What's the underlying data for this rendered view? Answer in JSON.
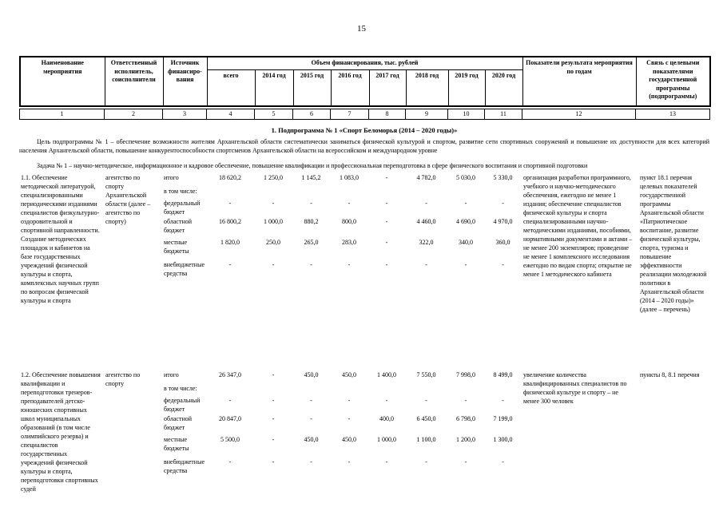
{
  "page": {
    "number": "15"
  },
  "table": {
    "headers": {
      "col1": "Наименование мероприятия",
      "col2": "Ответственный исполнитель, соисполнители",
      "col3": "Источник финансиро- вания",
      "funding_span": "Объем финансирования, тыс. рублей",
      "years": [
        "всего",
        "2014 год",
        "2015 год",
        "2016 год",
        "2017 год",
        "2018 год",
        "2019 год",
        "2020 год"
      ],
      "col12": "Показатели результата мероприятия по годам",
      "col13": "Связь с целевыми показателями государственной программы (подпрограммы)"
    },
    "column_numbers": [
      "1",
      "2",
      "3",
      "4",
      "5",
      "6",
      "7",
      "8",
      "9",
      "10",
      "11",
      "12",
      "13"
    ]
  },
  "subprogram": {
    "title": "1. Подпрограмма № 1 «Спорт Беломорья (2014 – 2020 годы)»",
    "goal": "Цель подпрограммы № 1 – обеспечение возможности жителям Архангельской области систематически заниматься физической культурой и спортом, развитие сети спортивных сооружений и повышение их доступности для всех категорий населения Архангельской области, повышение конкурентоспособности спортсменов Архангельской области на всероссийском и международном уровне",
    "task": "Задача № 1 – научно-методическое, информационное и кадровое обеспечение, повышение квалификации и профессиональная переподготовка в сфере физического воспитания и спортивной подготовки"
  },
  "rows": [
    {
      "measure": "1.1. Обеспечение методической литературой, специализированными периодическими изданиями специалистов физкультурно-оздоровительной и спортивной направленности. Создание методических площадок и кабинетов на базе государственных учреждений физической культуры и спорта, комплексных научных групп по вопросам физической культуры и спорта",
      "executor": "агентство по спорту Архангельской области (далее – агентство по спорту)",
      "financing": [
        {
          "source": "итого",
          "values": [
            "18 620,2",
            "1 250,0",
            "1 145,2",
            "1 083,0",
            "-",
            "4 782,0",
            "5 030,0",
            "5 330,0"
          ]
        },
        {
          "source": "в том числе:",
          "values": []
        },
        {
          "source": "федеральный бюджет",
          "values": [
            "-",
            "-",
            "-",
            "-",
            "-",
            "-",
            "-",
            "-"
          ]
        },
        {
          "source": "областной бюджет",
          "values": [
            "16 800,2",
            "1 000,0",
            "880,2",
            "800,0",
            "-",
            "4 460,0",
            "4 690,0",
            "4 970,0"
          ]
        },
        {
          "source": "местные бюджеты",
          "values": [
            "1 820,0",
            "250,0",
            "265,0",
            "283,0",
            "-",
            "322,0",
            "340,0",
            "360,0"
          ]
        },
        {
          "source": "внебюджетные средства",
          "values": [
            "-",
            "-",
            "-",
            "-",
            "-",
            "-",
            "-",
            "-"
          ]
        }
      ],
      "indicators": "организация разработки программного, учебного и научно-методического обеспечения, ежегодно не менее 1 издания; обеспечение специалистов физической культуры и спорта специализированными научно-методическими изданиями, пособиями, нормативными документами и актами – не менее 200 экземпляров; проведение не менее 1 комплексного исследования ежегодно по видам спорта; открытие не менее 1 методического кабинета",
      "link": "пункт 18.1 перечня целевых показателей государственной программы Архангельской области «Патриотическое воспитание, развитие физической культуры, спорта, туризма и повышение эффективности реализации молодежной политики в Архангельской области (2014 – 2020 годы)» (далее – перечень)"
    },
    {
      "measure": "1.2. Обеспечение повышения квалификации и переподготовки тренеров-преподавателей детско-юношеских спортивных школ муниципальных образований (в том числе олимпийского резерва) и специалистов государственных учреждений физической культуры и спорта, переподготовки спортивных судей",
      "executor": "агентство по спорту",
      "financing": [
        {
          "source": "итого",
          "values": [
            "26 347,0",
            "-",
            "450,0",
            "450,0",
            "1 400,0",
            "7 550,0",
            "7 998,0",
            "8 499,0"
          ]
        },
        {
          "source": "в том числе:",
          "values": []
        },
        {
          "source": "федеральный бюджет",
          "values": [
            "-",
            "-",
            "-",
            "-",
            "-",
            "-",
            "-",
            "-"
          ]
        },
        {
          "source": "областной бюджет",
          "values": [
            "20 847,0",
            "-",
            "-",
            "-",
            "400,0",
            "6 450,0",
            "6 798,0",
            "7 199,0"
          ]
        },
        {
          "source": "местные бюджеты",
          "values": [
            "5 500,0",
            "-",
            "450,0",
            "450,0",
            "1 000,0",
            "1 100,0",
            "1 200,0",
            "1 300,0"
          ]
        },
        {
          "source": "внебюджетные средства",
          "values": [
            "-",
            "-",
            "-",
            "-",
            "-",
            "-",
            "-",
            "-"
          ]
        }
      ],
      "indicators": "увеличение количества квалифицированных специалистов по физической культуре и спорту – не менее 300 человек",
      "link": "пункты 8, 8.1 перечня"
    }
  ]
}
